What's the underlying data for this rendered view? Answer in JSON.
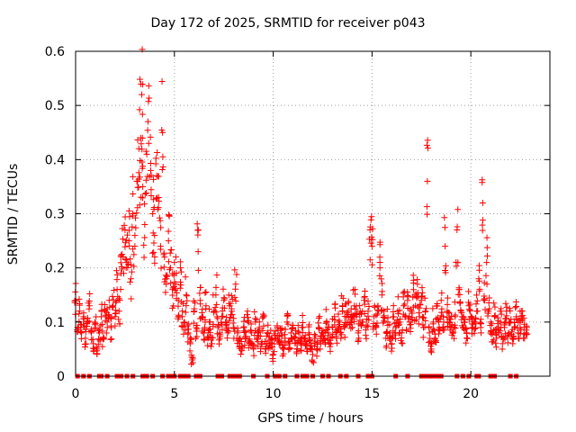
{
  "chart_data": {
    "type": "scatter",
    "title": "Day 172 of 2025, SRMTID for receiver p043",
    "xlabel": "GPS time / hours",
    "ylabel": "SRMTID / TECUs",
    "xlim": [
      0,
      24
    ],
    "ylim": [
      0,
      0.6
    ],
    "xticks": [
      0,
      5,
      10,
      15,
      20
    ],
    "xtick_labels": [
      "0",
      "5",
      "10",
      "15",
      "20"
    ],
    "yticks": [
      0,
      0.1,
      0.2,
      0.3,
      0.4,
      0.5,
      0.6
    ],
    "ytick_labels": [
      "0",
      "0.1",
      "0.2",
      "0.3",
      "0.4",
      "0.5",
      "0.6"
    ],
    "grid": true,
    "marker": "+",
    "color": "#ff0000",
    "series": [
      {
        "name": "SRMTID",
        "x": [
          0.0,
          0.1,
          0.2,
          0.3,
          0.4,
          0.5,
          0.6,
          0.7,
          0.8,
          0.9,
          1.0,
          1.1,
          1.2,
          1.3,
          1.4,
          1.5,
          1.6,
          1.7,
          1.8,
          1.9,
          2.0,
          2.1,
          2.2,
          2.3,
          2.4,
          2.5,
          2.6,
          2.7,
          2.8,
          2.9,
          3.0,
          3.1,
          3.2,
          3.3,
          3.35,
          3.4,
          3.5,
          3.6,
          3.7,
          3.8,
          3.9,
          4.0,
          4.1,
          4.2,
          4.3,
          4.4,
          4.5,
          4.6,
          4.7,
          4.8,
          4.9,
          5.0,
          5.1,
          5.2,
          5.3,
          5.4,
          5.5,
          5.6,
          5.7,
          5.8,
          5.9,
          6.0,
          6.1,
          6.2,
          6.3,
          6.4,
          6.5,
          6.6,
          6.7,
          6.8,
          6.9,
          7.0,
          7.1,
          7.2,
          7.3,
          7.4,
          7.5,
          7.6,
          7.7,
          7.8,
          7.9,
          8.0,
          8.1,
          8.2,
          8.3,
          8.4,
          8.5,
          8.6,
          8.7,
          8.8,
          8.9,
          9.0,
          9.1,
          9.2,
          9.3,
          9.4,
          9.5,
          9.6,
          9.7,
          9.8,
          9.9,
          10.0,
          10.1,
          10.2,
          10.3,
          10.4,
          10.5,
          10.6,
          10.7,
          10.8,
          10.9,
          11.0,
          11.1,
          11.2,
          11.3,
          11.4,
          11.5,
          11.6,
          11.7,
          11.8,
          11.9,
          12.0,
          12.1,
          12.2,
          12.3,
          12.4,
          12.5,
          12.6,
          12.7,
          12.8,
          12.9,
          13.0,
          13.1,
          13.2,
          13.3,
          13.4,
          13.5,
          13.6,
          13.7,
          13.8,
          13.9,
          14.0,
          14.1,
          14.2,
          14.3,
          14.4,
          14.5,
          14.6,
          14.7,
          14.8,
          14.9,
          15.0,
          15.1,
          15.2,
          15.3,
          15.4,
          15.5,
          15.6,
          15.7,
          15.8,
          15.9,
          16.0,
          16.1,
          16.2,
          16.3,
          16.4,
          16.5,
          16.6,
          16.7,
          16.8,
          16.9,
          17.0,
          17.1,
          17.2,
          17.3,
          17.4,
          17.5,
          17.6,
          17.7,
          17.8,
          17.9,
          18.0,
          18.1,
          18.2,
          18.3,
          18.4,
          18.5,
          18.6,
          18.7,
          18.8,
          18.9,
          19.0,
          19.1,
          19.2,
          19.3,
          19.4,
          19.5,
          19.6,
          19.7,
          19.8,
          19.9,
          20.0,
          20.1,
          20.2,
          20.3,
          20.4,
          20.5,
          20.6,
          20.7,
          20.8,
          20.9,
          21.0,
          21.1,
          21.2,
          21.3,
          21.4,
          21.5,
          21.6,
          21.7,
          21.8,
          21.9,
          22.0,
          22.1,
          22.2,
          22.3,
          22.4,
          22.5,
          22.6,
          22.7,
          22.8
        ],
        "y": [
          0.14,
          0.09,
          0.12,
          0.08,
          0.11,
          0.07,
          0.1,
          0.13,
          0.08,
          0.06,
          0.09,
          0.05,
          0.08,
          0.11,
          0.07,
          0.12,
          0.1,
          0.14,
          0.09,
          0.13,
          0.11,
          0.16,
          0.12,
          0.19,
          0.22,
          0.27,
          0.21,
          0.25,
          0.18,
          0.3,
          0.24,
          0.36,
          0.42,
          0.44,
          0.52,
          0.35,
          0.28,
          0.41,
          0.43,
          0.38,
          0.3,
          0.26,
          0.37,
          0.33,
          0.24,
          0.45,
          0.22,
          0.18,
          0.25,
          0.2,
          0.16,
          0.21,
          0.19,
          0.14,
          0.2,
          0.12,
          0.1,
          0.15,
          0.08,
          0.06,
          0.03,
          0.12,
          0.09,
          0.23,
          0.14,
          0.11,
          0.08,
          0.13,
          0.07,
          0.1,
          0.06,
          0.12,
          0.15,
          0.09,
          0.07,
          0.11,
          0.14,
          0.1,
          0.08,
          0.13,
          0.12,
          0.09,
          0.17,
          0.08,
          0.06,
          0.05,
          0.09,
          0.07,
          0.12,
          0.06,
          0.08,
          0.05,
          0.1,
          0.07,
          0.09,
          0.06,
          0.11,
          0.05,
          0.08,
          0.06,
          0.07,
          0.04,
          0.07,
          0.09,
          0.06,
          0.08,
          0.05,
          0.07,
          0.1,
          0.06,
          0.08,
          0.09,
          0.07,
          0.05,
          0.08,
          0.06,
          0.09,
          0.07,
          0.05,
          0.08,
          0.06,
          0.04,
          0.07,
          0.05,
          0.09,
          0.06,
          0.08,
          0.07,
          0.1,
          0.08,
          0.06,
          0.09,
          0.11,
          0.07,
          0.1,
          0.08,
          0.13,
          0.09,
          0.11,
          0.12,
          0.1,
          0.09,
          0.13,
          0.11,
          0.08,
          0.12,
          0.1,
          0.14,
          0.09,
          0.12,
          0.27,
          0.24,
          0.11,
          0.09,
          0.13,
          0.2,
          0.15,
          0.12,
          0.07,
          0.1,
          0.08,
          0.06,
          0.11,
          0.09,
          0.12,
          0.1,
          0.08,
          0.13,
          0.11,
          0.14,
          0.1,
          0.12,
          0.16,
          0.13,
          0.17,
          0.11,
          0.14,
          0.09,
          0.12,
          0.36,
          0.08,
          0.05,
          0.1,
          0.07,
          0.13,
          0.09,
          0.14,
          0.11,
          0.24,
          0.12,
          0.1,
          0.09,
          0.08,
          0.11,
          0.27,
          0.16,
          0.12,
          0.09,
          0.1,
          0.08,
          0.13,
          0.11,
          0.09,
          0.1,
          0.12,
          0.18,
          0.09,
          0.32,
          0.14,
          0.21,
          0.12,
          0.1,
          0.08,
          0.11,
          0.07,
          0.09,
          0.1,
          0.06,
          0.09,
          0.12,
          0.08,
          0.1,
          0.07,
          0.09,
          0.11,
          0.08,
          0.1,
          0.12,
          0.09,
          0.08
        ]
      }
    ],
    "zero_points_x": [
      0.1,
      0.4,
      0.7,
      1.2,
      1.3,
      1.6,
      2.1,
      2.3,
      2.6,
      2.9,
      3.4,
      3.6,
      3.9,
      4.4,
      4.7,
      4.8,
      4.9,
      5.0,
      5.3,
      5.5,
      5.7,
      6.1,
      6.3,
      7.2,
      7.4,
      7.8,
      8.0,
      8.2,
      8.3,
      9.0,
      9.7,
      10.1,
      10.3,
      10.6,
      11.2,
      11.5,
      11.7,
      12.0,
      12.5,
      12.8,
      13.4,
      13.7,
      14.3,
      14.8,
      15.0,
      16.2,
      16.8,
      17.5,
      17.7,
      17.9,
      18.1,
      18.3,
      18.5,
      19.3,
      19.6,
      19.9,
      20.3,
      20.4,
      21.0,
      21.2,
      22.0,
      22.3
    ]
  }
}
